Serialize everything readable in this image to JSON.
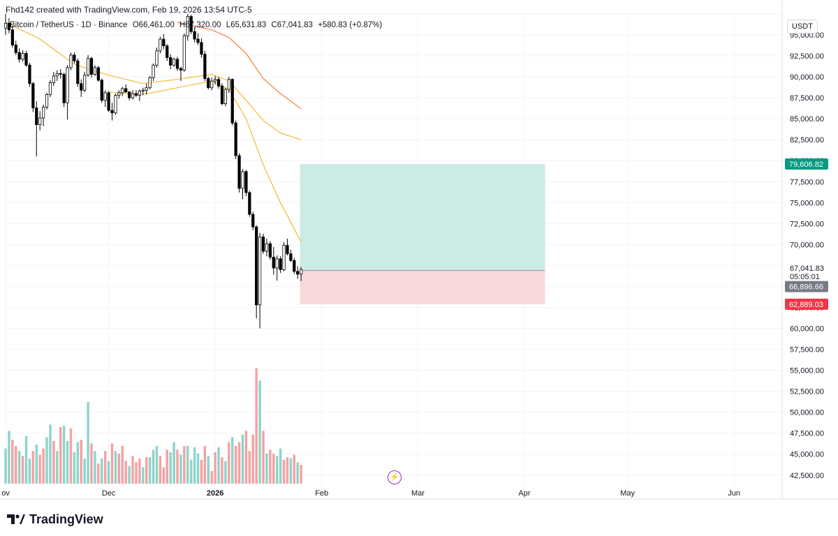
{
  "header": {
    "text": "Fhd142 created with TradingView.com, Feb 19, 2026 13:54 UTC-5"
  },
  "legend": {
    "symbol": "Bitcoin / TetherUS · 1D · Binance",
    "open": "O66,461.00",
    "high": "H67,320.00",
    "low": "L65,631.83",
    "close": "C67,041.83",
    "change": "+580.83 (+0.87%)"
  },
  "currency": "USDT",
  "price_axis": {
    "ticks": [
      "95,000.00",
      "92,500.00",
      "90,000.00",
      "87,500.00",
      "85,000.00",
      "82,500.00",
      "80,000.00",
      "77,500.00",
      "75,000.00",
      "72,500.00",
      "70,000.00",
      "67,500.00",
      "65,000.00",
      "62,500.00",
      "60,000.00",
      "57,500.00",
      "55,000.00",
      "52,500.00",
      "50,000.00",
      "47,500.00",
      "45,000.00",
      "42,500.00"
    ],
    "last_price": "67,041.83",
    "countdown": "05:05:01",
    "target_label": "79,606.82",
    "entry_label": "66,896.66",
    "stop_label": "62,889.03"
  },
  "time_axis": {
    "labels": [
      "ov",
      "Dec",
      "2026",
      "Feb",
      "Mar",
      "Apr",
      "May",
      "Jun"
    ]
  },
  "footer": {
    "brand": "TradingView",
    "logo_icon": "tradingview-logo-icon"
  },
  "colors": {
    "up": "#26a69a",
    "down": "#000000",
    "vol_up": "#8fd3cb",
    "vol_down": "#f3a3a3",
    "ma_fast": "#f5b82e",
    "ma_slow": "#f57c35",
    "target_zone": "#cdebe5",
    "stop_zone": "#fad9dc",
    "target_tag": "#089981",
    "stop_tag": "#f23645",
    "entry_tag": "#787b86"
  },
  "chart_data": {
    "type": "candlestick",
    "title": "Bitcoin / TetherUS · 1D · Binance",
    "ylim": [
      40900,
      97500
    ],
    "y_tick_step": 2500,
    "x_start": "2025-11-01",
    "x_end": "2026-06-15",
    "date_labels": [
      {
        "label": "ov",
        "date": "2025-11-01"
      },
      {
        "label": "Dec",
        "date": "2025-12-01"
      },
      {
        "label": "2026",
        "date": "2026-01-01"
      },
      {
        "label": "Feb",
        "date": "2026-02-01"
      },
      {
        "label": "Mar",
        "date": "2026-03-01"
      },
      {
        "label": "Apr",
        "date": "2026-04-01"
      },
      {
        "label": "May",
        "date": "2026-05-01"
      },
      {
        "label": "Jun",
        "date": "2026-06-01"
      }
    ],
    "first_candle_date": "2025-11-01",
    "candles": [
      [
        95800,
        97500,
        95000,
        96400
      ],
      [
        96400,
        97000,
        95200,
        95600
      ],
      [
        95600,
        96100,
        93500,
        93800
      ],
      [
        93800,
        94300,
        92600,
        92900
      ],
      [
        92900,
        93400,
        91700,
        92100
      ],
      [
        92100,
        93200,
        91800,
        92800
      ],
      [
        92800,
        93100,
        91200,
        91400
      ],
      [
        91400,
        91700,
        88800,
        89200
      ],
      [
        89200,
        89400,
        85800,
        86300
      ],
      [
        86300,
        87100,
        80500,
        84300
      ],
      [
        84300,
        85900,
        83600,
        85100
      ],
      [
        85100,
        86700,
        84100,
        86400
      ],
      [
        86400,
        88100,
        86100,
        87900
      ],
      [
        87900,
        89600,
        87600,
        89300
      ],
      [
        89300,
        90600,
        88900,
        90100
      ],
      [
        90100,
        90800,
        89500,
        90400
      ],
      [
        90400,
        90900,
        89800,
        90300
      ],
      [
        90300,
        90500,
        86400,
        86900
      ],
      [
        86900,
        91400,
        84900,
        91100
      ],
      [
        91100,
        92900,
        90800,
        92600
      ],
      [
        92600,
        92900,
        91600,
        91900
      ],
      [
        91900,
        92200,
        88800,
        89200
      ],
      [
        89200,
        89700,
        87600,
        88400
      ],
      [
        88400,
        90600,
        88200,
        90200
      ],
      [
        90200,
        92600,
        90000,
        92200
      ],
      [
        92200,
        92400,
        89900,
        90300
      ],
      [
        90300,
        91400,
        90100,
        91100
      ],
      [
        91100,
        91300,
        89400,
        89600
      ],
      [
        89600,
        89800,
        86900,
        87200
      ],
      [
        87200,
        88400,
        86400,
        88100
      ],
      [
        88100,
        88300,
        85800,
        86000
      ],
      [
        86000,
        86900,
        84800,
        85700
      ],
      [
        85700,
        88000,
        85500,
        87800
      ],
      [
        87800,
        88400,
        87400,
        88100
      ],
      [
        88100,
        88800,
        87700,
        88600
      ],
      [
        88600,
        89100,
        88100,
        88200
      ],
      [
        88200,
        88300,
        87200,
        87500
      ],
      [
        87500,
        88400,
        87300,
        88000
      ],
      [
        88000,
        88400,
        87600,
        87800
      ],
      [
        87800,
        88500,
        87100,
        88300
      ],
      [
        88300,
        88700,
        87800,
        88400
      ],
      [
        88400,
        89200,
        87900,
        88700
      ],
      [
        88700,
        90100,
        88500,
        89900
      ],
      [
        89900,
        91600,
        89500,
        91400
      ],
      [
        91400,
        93500,
        91100,
        93100
      ],
      [
        93100,
        94800,
        92800,
        94500
      ],
      [
        94500,
        95100,
        93300,
        93700
      ],
      [
        93700,
        93900,
        91900,
        92300
      ],
      [
        92300,
        92700,
        90900,
        91400
      ],
      [
        91400,
        92300,
        91200,
        92100
      ],
      [
        92100,
        92400,
        90700,
        91000
      ],
      [
        91000,
        91200,
        89500,
        90800
      ],
      [
        90800,
        95200,
        90600,
        94900
      ],
      [
        94900,
        97500,
        94300,
        97200
      ],
      [
        97200,
        97400,
        95100,
        95400
      ],
      [
        95400,
        95900,
        94100,
        94500
      ],
      [
        94500,
        95200,
        93800,
        94100
      ],
      [
        94100,
        94600,
        92300,
        92700
      ],
      [
        92700,
        93100,
        89500,
        89800
      ],
      [
        89800,
        90000,
        88500,
        88700
      ],
      [
        88700,
        89900,
        88400,
        89500
      ],
      [
        89500,
        90100,
        89100,
        89700
      ],
      [
        89700,
        90000,
        88600,
        88900
      ],
      [
        88900,
        89200,
        86600,
        86800
      ],
      [
        86800,
        88700,
        86500,
        88500
      ],
      [
        88500,
        90000,
        88100,
        89700
      ],
      [
        89700,
        89800,
        84200,
        84500
      ],
      [
        84500,
        84800,
        80200,
        80600
      ],
      [
        80600,
        80900,
        76200,
        76700
      ],
      [
        76700,
        79000,
        75400,
        78700
      ],
      [
        78700,
        78900,
        75800,
        76200
      ],
      [
        76200,
        76400,
        73300,
        73600
      ],
      [
        73600,
        73900,
        71700,
        72100
      ],
      [
        72100,
        72300,
        61200,
        62800
      ],
      [
        62800,
        71400,
        60000,
        70900
      ],
      [
        70900,
        71300,
        68900,
        69200
      ],
      [
        69200,
        70700,
        68600,
        70100
      ],
      [
        70100,
        70400,
        68200,
        68500
      ],
      [
        68500,
        69700,
        66400,
        67200
      ],
      [
        67200,
        68700,
        65700,
        68300
      ],
      [
        68300,
        68600,
        66600,
        67000
      ],
      [
        67000,
        70300,
        66800,
        69900
      ],
      [
        69900,
        70700,
        68700,
        68900
      ],
      [
        68900,
        69400,
        67900,
        68100
      ],
      [
        68100,
        68400,
        66500,
        66800
      ],
      [
        66800,
        67400,
        65900,
        66460
      ],
      [
        66461,
        67320,
        65632,
        67042
      ]
    ],
    "ma_fast": [
      [
        30,
        88200
      ],
      [
        40,
        87900
      ],
      [
        50,
        88700
      ],
      [
        60,
        89500
      ],
      [
        65,
        88500
      ],
      [
        70,
        85000
      ],
      [
        75,
        79500
      ],
      [
        80,
        75000
      ],
      [
        86,
        70300
      ]
    ],
    "ma_slow": [
      [
        0,
        96500
      ],
      [
        10,
        94500
      ],
      [
        20,
        91500
      ],
      [
        30,
        90200
      ],
      [
        40,
        89200
      ],
      [
        50,
        89700
      ],
      [
        60,
        90300
      ],
      [
        65,
        89500
      ],
      [
        70,
        87200
      ],
      [
        75,
        84800
      ],
      [
        80,
        83300
      ],
      [
        86,
        82500
      ]
    ],
    "ma_slowest": [
      [
        50,
        96500
      ],
      [
        60,
        95600
      ],
      [
        65,
        94700
      ],
      [
        70,
        92800
      ],
      [
        75,
        89800
      ],
      [
        80,
        88000
      ],
      [
        86,
        86200
      ]
    ],
    "volume_ylim": [
      0,
      100
    ],
    "volumes": [
      [
        28,
        1
      ],
      [
        42,
        1
      ],
      [
        35,
        0
      ],
      [
        30,
        0
      ],
      [
        26,
        1
      ],
      [
        22,
        0
      ],
      [
        38,
        1
      ],
      [
        20,
        1
      ],
      [
        26,
        0
      ],
      [
        31,
        1
      ],
      [
        23,
        0
      ],
      [
        28,
        0
      ],
      [
        37,
        1
      ],
      [
        47,
        1
      ],
      [
        34,
        0
      ],
      [
        26,
        1
      ],
      [
        45,
        0
      ],
      [
        46,
        1
      ],
      [
        34,
        1
      ],
      [
        44,
        0
      ],
      [
        25,
        1
      ],
      [
        33,
        1
      ],
      [
        35,
        0
      ],
      [
        20,
        1
      ],
      [
        65,
        1
      ],
      [
        32,
        0
      ],
      [
        26,
        1
      ],
      [
        16,
        0
      ],
      [
        20,
        1
      ],
      [
        26,
        0
      ],
      [
        18,
        1
      ],
      [
        32,
        0
      ],
      [
        26,
        1
      ],
      [
        24,
        0
      ],
      [
        30,
        0
      ],
      [
        18,
        0
      ],
      [
        14,
        1
      ],
      [
        22,
        0
      ],
      [
        17,
        0
      ],
      [
        20,
        0
      ],
      [
        13,
        1
      ],
      [
        21,
        0
      ],
      [
        21,
        1
      ],
      [
        27,
        1
      ],
      [
        30,
        1
      ],
      [
        22,
        0
      ],
      [
        13,
        0
      ],
      [
        27,
        0
      ],
      [
        25,
        1
      ],
      [
        33,
        1
      ],
      [
        27,
        0
      ],
      [
        23,
        1
      ],
      [
        30,
        0
      ],
      [
        30,
        1
      ],
      [
        19,
        1
      ],
      [
        29,
        1
      ],
      [
        24,
        1
      ],
      [
        19,
        0
      ],
      [
        30,
        0
      ],
      [
        22,
        1
      ],
      [
        10,
        0
      ],
      [
        25,
        0
      ],
      [
        29,
        1
      ],
      [
        21,
        0
      ],
      [
        18,
        1
      ],
      [
        33,
        0
      ],
      [
        37,
        1
      ],
      [
        30,
        0
      ],
      [
        33,
        0
      ],
      [
        39,
        1
      ],
      [
        42,
        0
      ],
      [
        26,
        0
      ],
      [
        39,
        0
      ],
      [
        92,
        0
      ],
      [
        82,
        1
      ],
      [
        42,
        0
      ],
      [
        24,
        1
      ],
      [
        27,
        0
      ],
      [
        24,
        0
      ],
      [
        22,
        1
      ],
      [
        28,
        1
      ],
      [
        19,
        0
      ],
      [
        21,
        0
      ],
      [
        20,
        1
      ],
      [
        23,
        0
      ],
      [
        17,
        1
      ],
      [
        15,
        0
      ]
    ],
    "position": {
      "type": "long",
      "target": 79606.82,
      "entry": 66896.66,
      "stop": 62889.03,
      "start_index": 86,
      "end_date": "2026-04-07"
    }
  }
}
